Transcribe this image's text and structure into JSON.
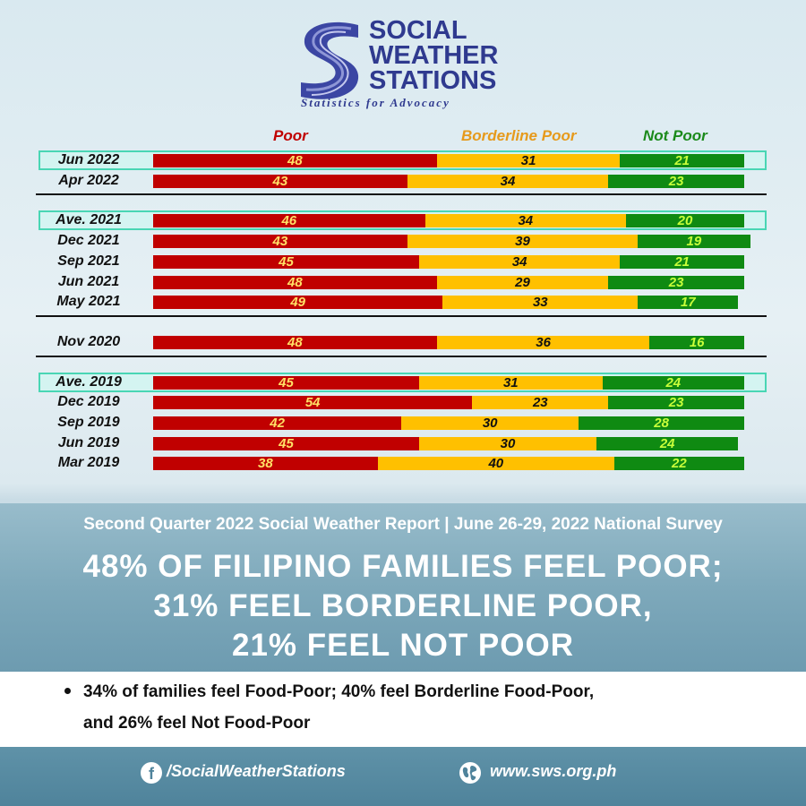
{
  "logo": {
    "line1": "SOCIAL",
    "line2": "WEATHER",
    "line3": "STATIONS",
    "tagline": "Statistics for Advocacy"
  },
  "colors": {
    "poor": "#c00000",
    "borderline": "#ffc000",
    "not_poor": "#0f8a12",
    "highlight": "#49d6b4"
  },
  "chart_data": {
    "type": "bar",
    "orientation": "horizontal-stacked",
    "title": "",
    "xlabel": "",
    "ylabel": "",
    "legend": [
      "Poor",
      "Borderline Poor",
      "Not Poor"
    ],
    "legend_position": "top",
    "xlim": [
      0,
      100
    ],
    "rows": [
      {
        "label": "Jun 2022",
        "poor": 48,
        "borderline": 31,
        "not_poor": 21,
        "highlight": true,
        "group": 0
      },
      {
        "label": "Apr 2022",
        "poor": 43,
        "borderline": 34,
        "not_poor": 23,
        "highlight": false,
        "group": 0
      },
      {
        "label": "Ave. 2021",
        "poor": 46,
        "borderline": 34,
        "not_poor": 20,
        "highlight": true,
        "group": 1
      },
      {
        "label": "Dec 2021",
        "poor": 43,
        "borderline": 39,
        "not_poor": 19,
        "highlight": false,
        "group": 1
      },
      {
        "label": "Sep 2021",
        "poor": 45,
        "borderline": 34,
        "not_poor": 21,
        "highlight": false,
        "group": 1
      },
      {
        "label": "Jun 2021",
        "poor": 48,
        "borderline": 29,
        "not_poor": 23,
        "highlight": false,
        "group": 1
      },
      {
        "label": "May 2021",
        "poor": 49,
        "borderline": 33,
        "not_poor": 17,
        "highlight": false,
        "group": 1
      },
      {
        "label": "Nov 2020",
        "poor": 48,
        "borderline": 36,
        "not_poor": 16,
        "highlight": false,
        "group": 2
      },
      {
        "label": "Ave. 2019",
        "poor": 45,
        "borderline": 31,
        "not_poor": 24,
        "highlight": true,
        "group": 3
      },
      {
        "label": "Dec 2019",
        "poor": 54,
        "borderline": 23,
        "not_poor": 23,
        "highlight": false,
        "group": 3
      },
      {
        "label": "Sep 2019",
        "poor": 42,
        "borderline": 30,
        "not_poor": 28,
        "highlight": false,
        "group": 3
      },
      {
        "label": "Jun 2019",
        "poor": 45,
        "borderline": 30,
        "not_poor": 24,
        "highlight": false,
        "group": 3
      },
      {
        "label": "Mar 2019",
        "poor": 38,
        "borderline": 40,
        "not_poor": 22,
        "highlight": false,
        "group": 3
      }
    ]
  },
  "report": {
    "subtitle": "Second Quarter 2022 Social Weather Report | June 26-29, 2022 National Survey",
    "headline1": "48% OF FILIPINO FAMILIES FEEL POOR;",
    "headline2": "31% FEEL BORDERLINE POOR,",
    "headline3": "21% FEEL NOT POOR",
    "bullet_line1": "34% of families feel Food-Poor; 40% feel Borderline Food-Poor,",
    "bullet_line2": "and 26% feel Not Food-Poor"
  },
  "footer": {
    "facebook_icon": "facebook-icon",
    "facebook_handle": "/SocialWeatherStations",
    "globe_icon": "globe-icon",
    "website": "www.sws.org.ph"
  }
}
